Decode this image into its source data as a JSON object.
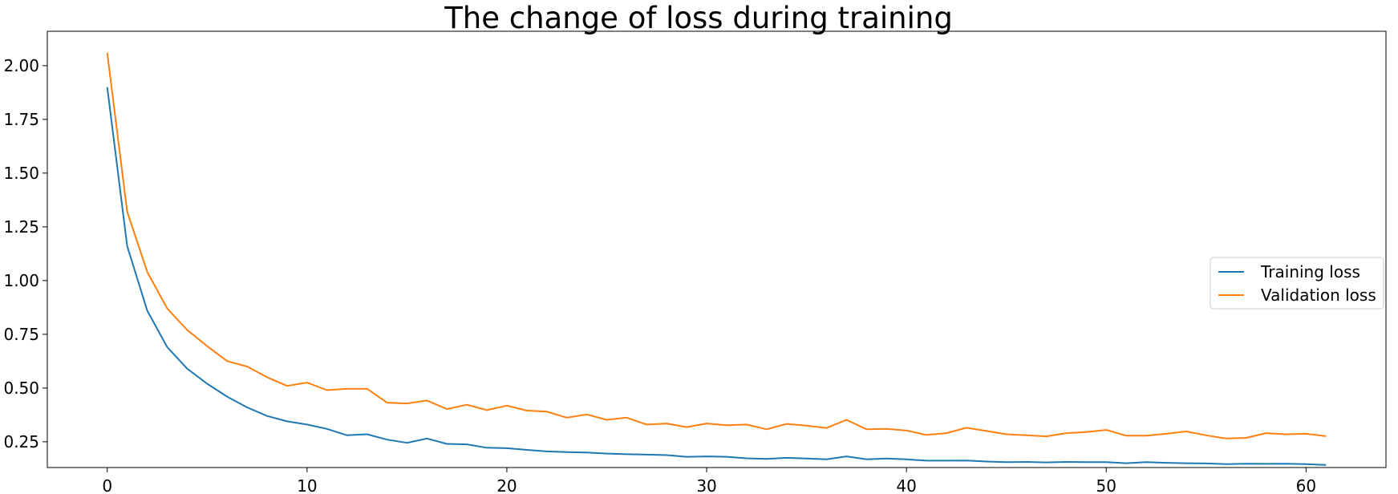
{
  "chart_data": {
    "type": "line",
    "title": "The change of loss during training",
    "xlabel": "",
    "ylabel": "",
    "xlim": [
      -3,
      64
    ],
    "ylim": [
      0.13,
      2.16
    ],
    "x_ticks": [
      0,
      10,
      20,
      30,
      40,
      50,
      60
    ],
    "y_ticks": [
      0.25,
      0.5,
      0.75,
      1.0,
      1.25,
      1.5,
      1.75,
      2.0
    ],
    "x_tick_labels": [
      "0",
      "10",
      "20",
      "30",
      "40",
      "50",
      "60"
    ],
    "y_tick_labels": [
      "0.25",
      "0.50",
      "0.75",
      "1.00",
      "1.25",
      "1.50",
      "1.75",
      "2.00"
    ],
    "grid": false,
    "legend": {
      "placement": "center-right",
      "entries": [
        "Training loss",
        "Validation loss"
      ]
    },
    "x": [
      0,
      1,
      2,
      3,
      4,
      5,
      6,
      7,
      8,
      9,
      10,
      11,
      12,
      13,
      14,
      15,
      16,
      17,
      18,
      19,
      20,
      21,
      22,
      23,
      24,
      25,
      26,
      27,
      28,
      29,
      30,
      31,
      32,
      33,
      34,
      35,
      36,
      37,
      38,
      39,
      40,
      41,
      42,
      43,
      44,
      45,
      46,
      47,
      48,
      49,
      50,
      51,
      52,
      53,
      54,
      55,
      56,
      57,
      58,
      59,
      60,
      61
    ],
    "series": [
      {
        "name": "Training loss",
        "color": "#1f77b4",
        "values": [
          1.9,
          1.16,
          0.86,
          0.69,
          0.59,
          0.52,
          0.46,
          0.41,
          0.37,
          0.345,
          0.33,
          0.31,
          0.28,
          0.285,
          0.26,
          0.245,
          0.265,
          0.24,
          0.238,
          0.222,
          0.22,
          0.212,
          0.205,
          0.202,
          0.2,
          0.195,
          0.192,
          0.19,
          0.188,
          0.18,
          0.182,
          0.18,
          0.173,
          0.17,
          0.175,
          0.172,
          0.168,
          0.182,
          0.168,
          0.172,
          0.168,
          0.162,
          0.162,
          0.163,
          0.158,
          0.155,
          0.156,
          0.154,
          0.156,
          0.155,
          0.155,
          0.15,
          0.155,
          0.152,
          0.15,
          0.149,
          0.146,
          0.148,
          0.147,
          0.148,
          0.146,
          0.142
        ]
      },
      {
        "name": "Validation loss",
        "color": "#ff7f0e",
        "values": [
          2.06,
          1.32,
          1.04,
          0.87,
          0.77,
          0.695,
          0.625,
          0.6,
          0.55,
          0.51,
          0.525,
          0.49,
          0.497,
          0.497,
          0.432,
          0.428,
          0.442,
          0.402,
          0.422,
          0.397,
          0.418,
          0.395,
          0.39,
          0.362,
          0.377,
          0.352,
          0.362,
          0.33,
          0.335,
          0.318,
          0.335,
          0.327,
          0.33,
          0.308,
          0.333,
          0.325,
          0.314,
          0.352,
          0.308,
          0.31,
          0.302,
          0.282,
          0.29,
          0.315,
          0.3,
          0.285,
          0.28,
          0.275,
          0.29,
          0.295,
          0.305,
          0.278,
          0.278,
          0.287,
          0.298,
          0.28,
          0.265,
          0.268,
          0.29,
          0.285,
          0.287,
          0.276
        ]
      }
    ]
  }
}
